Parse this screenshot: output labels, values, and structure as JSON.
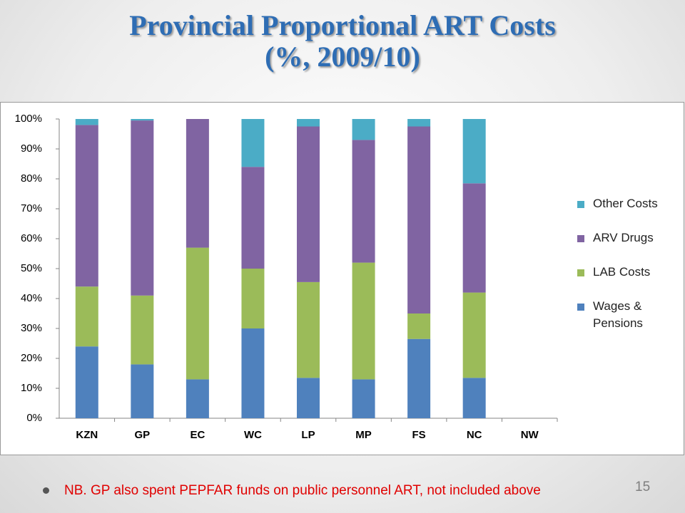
{
  "slide": {
    "title": "Provincial Proportional ART Costs",
    "subtitle": "(%, 2009/10)",
    "note": "NB. GP also spent PEPFAR funds on public personnel ART, not included above",
    "page_number": "15"
  },
  "chart_data": {
    "type": "stacked_bar",
    "categories": [
      "KZN",
      "GP",
      "EC",
      "WC",
      "LP",
      "MP",
      "FS",
      "NC",
      "NW"
    ],
    "series": [
      {
        "name": "Wages & Pensions",
        "color": "#4f81bd",
        "values": [
          24,
          18,
          13,
          30,
          13.5,
          13,
          26.5,
          13.5,
          null
        ]
      },
      {
        "name": "LAB Costs",
        "color": "#9bbb59",
        "values": [
          20,
          23,
          44,
          20,
          32,
          39,
          8.5,
          28.5,
          null
        ]
      },
      {
        "name": "ARV Drugs",
        "color": "#8064a2",
        "values": [
          54,
          58.5,
          43,
          34,
          52,
          41,
          62.5,
          36.5,
          null
        ]
      },
      {
        "name": "Other Costs",
        "color": "#4bacc6",
        "values": [
          2,
          0.5,
          0,
          16,
          2.5,
          7,
          2.5,
          21.5,
          null
        ]
      }
    ],
    "ylim": [
      0,
      100
    ],
    "yticks": [
      {
        "value": 0,
        "label": "0%"
      },
      {
        "value": 10,
        "label": "10%"
      },
      {
        "value": 20,
        "label": "20%"
      },
      {
        "value": 30,
        "label": "30%"
      },
      {
        "value": 40,
        "label": "40%"
      },
      {
        "value": 50,
        "label": "50%"
      },
      {
        "value": 60,
        "label": "60%"
      },
      {
        "value": 70,
        "label": "70%"
      },
      {
        "value": 80,
        "label": "80%"
      },
      {
        "value": 90,
        "label": "90%"
      },
      {
        "value": 100,
        "label": "100%"
      }
    ],
    "grid": false,
    "legend": "right"
  }
}
